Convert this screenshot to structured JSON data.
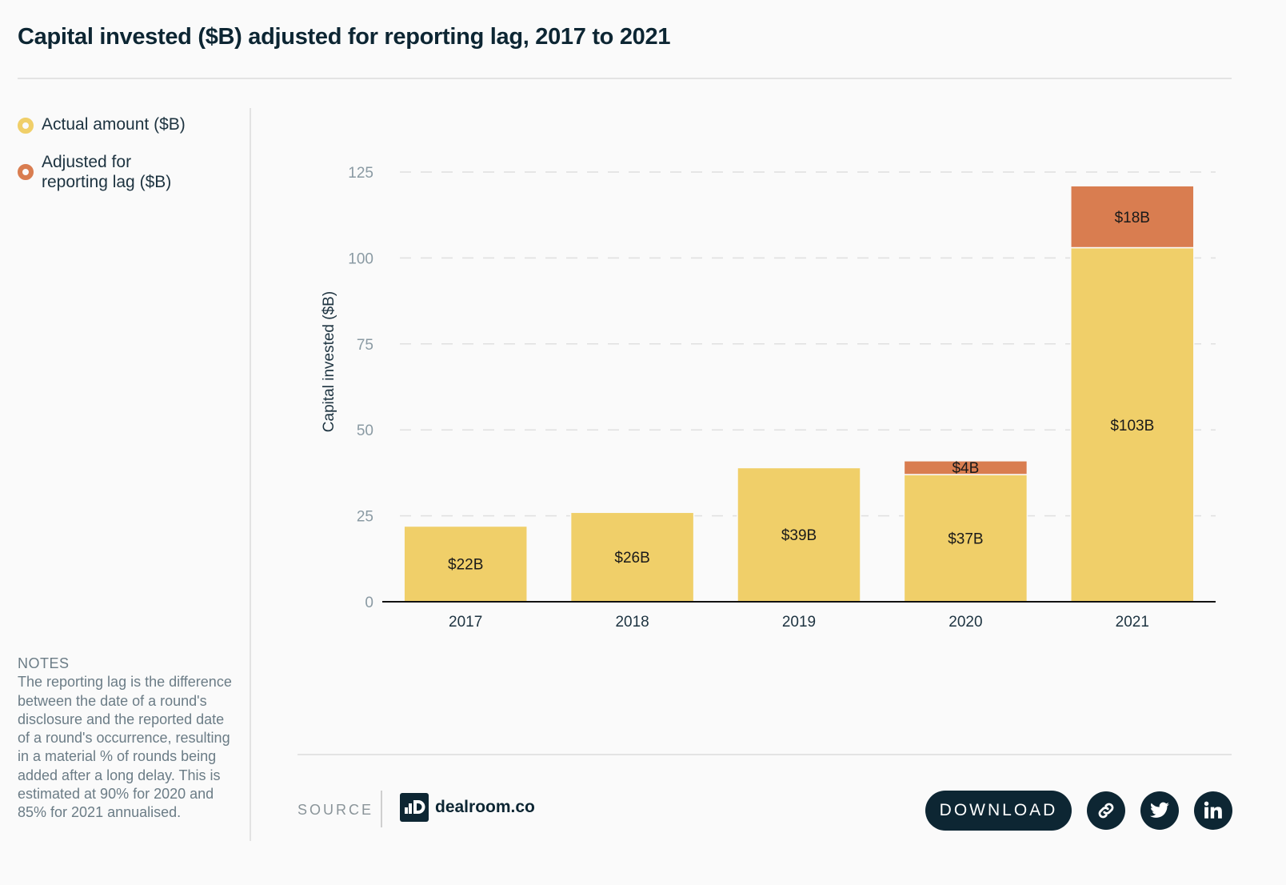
{
  "title": "Capital invested ($B) adjusted for reporting lag, 2017 to 2021",
  "legend": [
    {
      "label": "Actual amount ($B)",
      "color": "#f0cf69"
    },
    {
      "label": "Adjusted for reporting lag ($B)",
      "color": "#d97d50"
    }
  ],
  "notes": {
    "heading": "NOTES",
    "text": "The reporting lag is the difference between the date of a round's disclosure and the reported date of a round's occurrence, resulting in a material % of rounds being added after a long delay. This is estimated at 90% for 2020 and 85% for 2021 annualised."
  },
  "footer": {
    "source_label": "SOURCE",
    "logo_text": "dealroom.co",
    "download_label": "DOWNLOAD",
    "icons": [
      "link-icon",
      "twitter-icon",
      "linkedin-icon"
    ]
  },
  "colors": {
    "actual": "#f0cf69",
    "adjusted": "#d97d50",
    "dark": "#0d2633",
    "grid": "#e0e0e0",
    "tick": "#8a9aa3"
  },
  "chart_data": {
    "type": "bar",
    "stacked": true,
    "title": "Capital invested ($B) adjusted for reporting lag, 2017 to 2021",
    "xlabel": "",
    "ylabel": "Capital invested ($B)",
    "ylim": [
      0,
      125
    ],
    "yticks": [
      0,
      25,
      50,
      75,
      100,
      125
    ],
    "grid": true,
    "legend_position": "left",
    "categories": [
      "2017",
      "2018",
      "2019",
      "2020",
      "2021"
    ],
    "series": [
      {
        "name": "Actual amount ($B)",
        "values": [
          22,
          26,
          39,
          37,
          103
        ],
        "labels": [
          "$22B",
          "$26B",
          "$39B",
          "$37B",
          "$103B"
        ]
      },
      {
        "name": "Adjusted for reporting lag ($B)",
        "values": [
          0,
          0,
          0,
          4,
          18
        ],
        "labels": [
          "",
          "",
          "",
          "$4B",
          "$18B"
        ]
      }
    ]
  }
}
